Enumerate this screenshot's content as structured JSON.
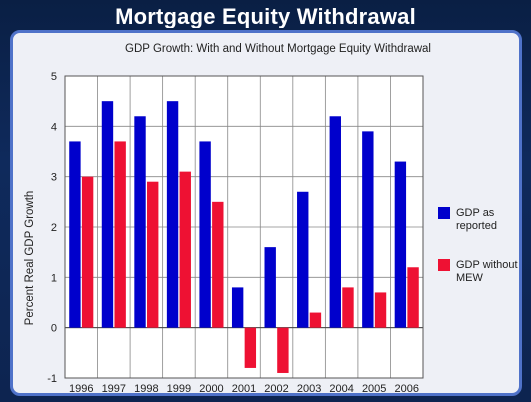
{
  "slide": {
    "title": "Mortgage Equity Withdrawal"
  },
  "chart_data": {
    "type": "bar",
    "title": "GDP Growth: With and Without Mortgage Equity Withdrawal",
    "ylabel": "Percent Real GDP Growth",
    "xlabel": "",
    "categories": [
      "1996",
      "1997",
      "1998",
      "1999",
      "2000",
      "2001",
      "2002",
      "2003",
      "2004",
      "2005",
      "2006"
    ],
    "series": [
      {
        "name": "GDP as reported",
        "legend_lines": [
          "GDP as",
          "reported"
        ],
        "color": "#0000cc",
        "values": [
          3.7,
          4.5,
          4.2,
          4.5,
          3.7,
          0.8,
          1.6,
          2.7,
          4.2,
          3.9,
          3.3
        ]
      },
      {
        "name": "GDP without MEW",
        "legend_lines": [
          "GDP without",
          "MEW"
        ],
        "color": "#ee1133",
        "values": [
          3.0,
          3.7,
          2.9,
          3.1,
          2.5,
          -0.8,
          -0.9,
          0.3,
          0.8,
          0.7,
          1.2
        ]
      }
    ],
    "ylim": [
      -1,
      5
    ],
    "yticks": [
      "-1",
      "0",
      "1",
      "2",
      "3",
      "4",
      "5"
    ],
    "grid": true,
    "legend_position": "right"
  }
}
